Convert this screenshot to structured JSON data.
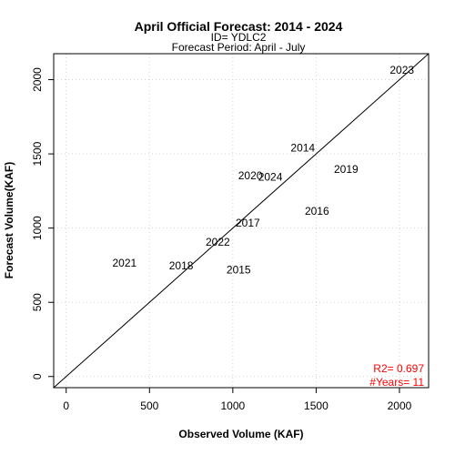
{
  "chart_data": {
    "type": "scatter",
    "title": "April Official Forecast: 2014 - 2024",
    "subtitle_id": "ID= YDLC2",
    "subtitle_period": "Forecast Period:  April - July",
    "xlabel": "Observed Volume (KAF)",
    "ylabel": "Forecast Volume(KAF)",
    "xlim": [
      -75,
      2175
    ],
    "ylim": [
      -75,
      2175
    ],
    "xticks": [
      0,
      500,
      1000,
      1500,
      2000
    ],
    "yticks": [
      0,
      500,
      1000,
      1500,
      2000
    ],
    "grid": true,
    "reference_line": "1:1",
    "points": [
      {
        "label": "2014",
        "x": 1420,
        "y": 1540
      },
      {
        "label": "2015",
        "x": 1035,
        "y": 720
      },
      {
        "label": "2016",
        "x": 1505,
        "y": 1115
      },
      {
        "label": "2017",
        "x": 1090,
        "y": 1035
      },
      {
        "label": "2018",
        "x": 690,
        "y": 745
      },
      {
        "label": "2019",
        "x": 1680,
        "y": 1395
      },
      {
        "label": "2020",
        "x": 1105,
        "y": 1355
      },
      {
        "label": "2021",
        "x": 350,
        "y": 765
      },
      {
        "label": "2022",
        "x": 910,
        "y": 905
      },
      {
        "label": "2023",
        "x": 2015,
        "y": 2065
      },
      {
        "label": "2024",
        "x": 1225,
        "y": 1345
      }
    ],
    "stats": {
      "r2": "R2=  0.697",
      "years": "#Years=  11",
      "color": "#ff0000"
    }
  }
}
